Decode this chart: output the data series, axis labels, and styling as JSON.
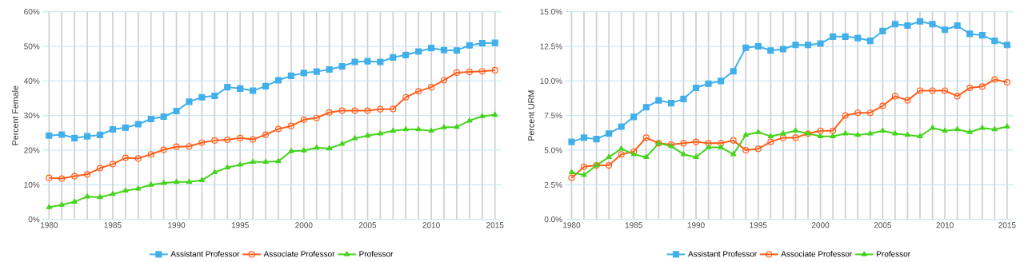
{
  "chart_data": [
    {
      "type": "line",
      "ylabel": "Percent Female",
      "x": [
        1980,
        1981,
        1982,
        1983,
        1984,
        1985,
        1986,
        1987,
        1988,
        1989,
        1990,
        1991,
        1992,
        1993,
        1994,
        1995,
        1996,
        1997,
        1998,
        1999,
        2000,
        2001,
        2002,
        2003,
        2004,
        2005,
        2006,
        2007,
        2008,
        2009,
        2010,
        2011,
        2012,
        2013,
        2014,
        2015
      ],
      "series": [
        {
          "name": "Assistant Professor",
          "color": "#41b0ea",
          "marker": "square",
          "values": [
            24.2,
            24.5,
            23.5,
            24,
            24.4,
            26,
            26.5,
            27.5,
            29,
            29.7,
            31.3,
            34,
            35.3,
            35.7,
            38.2,
            37.8,
            37.2,
            38.5,
            40.2,
            41.5,
            42.3,
            42.7,
            43.3,
            44.2,
            45.5,
            45.7,
            45.5,
            46.8,
            47.5,
            48.5,
            49.5,
            48.9,
            48.8,
            50.3,
            50.9,
            51
          ]
        },
        {
          "name": "Associate Professor",
          "color": "#ff5e1a",
          "marker": "circle",
          "values": [
            12,
            11.8,
            12.5,
            13,
            14.8,
            16,
            17.8,
            17.6,
            18.8,
            20.1,
            21,
            21.1,
            22.2,
            22.8,
            23,
            23.5,
            23.1,
            24.5,
            26.1,
            27,
            28.8,
            29.3,
            30.9,
            31.4,
            31.4,
            31.4,
            31.8,
            31.9,
            35.3,
            37,
            38.2,
            40.2,
            42.4,
            42.6,
            42.8,
            43.1
          ]
        },
        {
          "name": "Professor",
          "color": "#44d41c",
          "marker": "triangle",
          "values": [
            3.5,
            4.2,
            5.1,
            6.6,
            6.4,
            7.3,
            8.3,
            8.9,
            10,
            10.5,
            10.8,
            10.8,
            11.3,
            13.6,
            15,
            15.8,
            16.6,
            16.6,
            16.8,
            19.7,
            19.9,
            20.7,
            20.5,
            21.8,
            23.4,
            24.2,
            24.8,
            25.6,
            26,
            26,
            25.6,
            26.6,
            26.7,
            28.5,
            29.8,
            30.2
          ]
        }
      ],
      "xlim": [
        1979.5,
        2015.5
      ],
      "xticks": [
        1980,
        1985,
        1990,
        1995,
        2000,
        2005,
        2010,
        2015
      ],
      "ylim": [
        0,
        60
      ],
      "yticks": [
        {
          "value": 0,
          "label": "0%"
        },
        {
          "value": 10,
          "label": "10%"
        },
        {
          "value": 20,
          "label": "20%"
        },
        {
          "value": 30,
          "label": "30%"
        },
        {
          "value": 40,
          "label": "40%"
        },
        {
          "value": 50,
          "label": "50%"
        },
        {
          "value": 60,
          "label": "60%"
        }
      ],
      "grid": true,
      "legend": "bottom"
    },
    {
      "type": "line",
      "ylabel": "Percent URM",
      "x": [
        1980,
        1981,
        1982,
        1983,
        1984,
        1985,
        1986,
        1987,
        1988,
        1989,
        1990,
        1991,
        1992,
        1993,
        1994,
        1995,
        1996,
        1997,
        1998,
        1999,
        2000,
        2001,
        2002,
        2003,
        2004,
        2005,
        2006,
        2007,
        2008,
        2009,
        2010,
        2011,
        2012,
        2013,
        2014,
        2015
      ],
      "series": [
        {
          "name": "Assistant Professor",
          "color": "#41b0ea",
          "marker": "square",
          "values": [
            5.6,
            5.9,
            5.8,
            6.2,
            6.7,
            7.4,
            8.1,
            8.6,
            8.4,
            8.7,
            9.5,
            9.8,
            10,
            10.7,
            12.4,
            12.5,
            12.2,
            12.3,
            12.6,
            12.6,
            12.7,
            13.2,
            13.2,
            13.1,
            12.9,
            13.6,
            14.1,
            14.0,
            14.3,
            14.1,
            13.7,
            14.0,
            13.4,
            13.3,
            12.9,
            12.6
          ]
        },
        {
          "name": "Associate Professor",
          "color": "#ff5e1a",
          "marker": "circle",
          "values": [
            3.0,
            3.8,
            3.9,
            3.9,
            4.7,
            4.9,
            5.9,
            5.5,
            5.4,
            5.5,
            5.6,
            5.5,
            5.5,
            5.7,
            5.0,
            5.1,
            5.6,
            5.9,
            5.9,
            6.2,
            6.4,
            6.4,
            7.5,
            7.7,
            7.7,
            8.2,
            8.9,
            8.6,
            9.3,
            9.3,
            9.3,
            8.9,
            9.5,
            9.6,
            10.1,
            9.9
          ]
        },
        {
          "name": "Professor",
          "color": "#44d41c",
          "marker": "triangle",
          "values": [
            3.4,
            3.2,
            3.9,
            4.5,
            5.1,
            4.7,
            4.5,
            5.5,
            5.3,
            4.7,
            4.5,
            5.2,
            5.2,
            4.7,
            6.1,
            6.3,
            6.0,
            6.2,
            6.4,
            6.2,
            6.0,
            6.0,
            6.2,
            6.1,
            6.2,
            6.4,
            6.2,
            6.1,
            6.0,
            6.6,
            6.4,
            6.5,
            6.3,
            6.6,
            6.5,
            6.7
          ]
        }
      ],
      "xlim": [
        1979.5,
        2015.5
      ],
      "xticks": [
        1980,
        1985,
        1990,
        1995,
        2000,
        2005,
        2010,
        2015
      ],
      "ylim": [
        0,
        15
      ],
      "yticks": [
        {
          "value": 0,
          "label": "0.0%"
        },
        {
          "value": 2.5,
          "label": "2.5%"
        },
        {
          "value": 5,
          "label": "5.0%"
        },
        {
          "value": 7.5,
          "label": "7.5%"
        },
        {
          "value": 10,
          "label": "10.0%"
        },
        {
          "value": 12.5,
          "label": "12.5%"
        },
        {
          "value": 15,
          "label": "15.0%"
        }
      ],
      "grid": true,
      "legend": "bottom"
    }
  ]
}
